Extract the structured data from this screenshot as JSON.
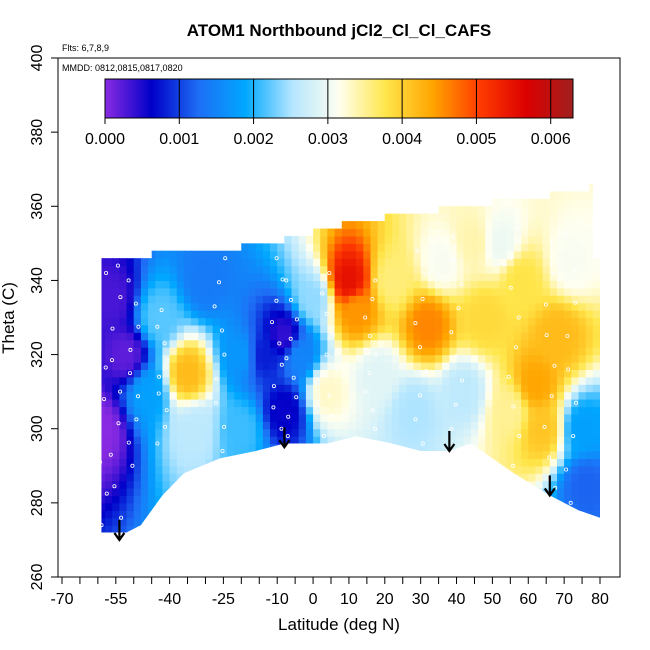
{
  "chart_data": {
    "type": "heatmap",
    "title": "ATOM1 Northbound jCl2_Cl_Cl_CAFS",
    "annotations": {
      "flights": "Flts: 6,7,8,9",
      "dates": "MMDD: 0812,0815,0817,0820"
    },
    "xlabel": "Latitude (deg N)",
    "ylabel": "Theta (C)",
    "xlim": [
      -70,
      82
    ],
    "ylim": [
      260,
      400
    ],
    "x_ticks": [
      -70,
      -55,
      -40,
      -25,
      -10,
      0,
      10,
      20,
      30,
      40,
      50,
      60,
      70,
      80
    ],
    "x_tick_labels": [
      "-70",
      "-55",
      "-40",
      "-25",
      "-10",
      "0",
      "10",
      "20",
      "30",
      "40",
      "50",
      "60",
      "70",
      "80"
    ],
    "y_ticks": [
      260,
      280,
      300,
      320,
      340,
      360,
      380,
      400
    ],
    "y_tick_labels": [
      "260",
      "280",
      "300",
      "320",
      "340",
      "360",
      "380",
      "400"
    ],
    "colorbar": {
      "min": 0.0,
      "max": 0.0063,
      "ticks": [
        0.0,
        0.001,
        0.002,
        0.003,
        0.004,
        0.005,
        0.006
      ],
      "tick_labels": [
        "0.000",
        "0.001",
        "0.002",
        "0.003",
        "0.004",
        "0.005",
        "0.006"
      ],
      "dividers": [
        0.001,
        0.002,
        0.003,
        0.004,
        0.005,
        0.006
      ],
      "colors": [
        "#8a2be2",
        "#0000c8",
        "#1e6ef5",
        "#00a8ff",
        "#b4e6ff",
        "#fffff0",
        "#ffe64b",
        "#ffa500",
        "#ff3c00",
        "#dc0000",
        "#a0201e"
      ]
    },
    "upper_boundary": [
      [
        -59,
        346
      ],
      [
        -45,
        346
      ],
      [
        -45,
        348
      ],
      [
        -20,
        348
      ],
      [
        -20,
        350
      ],
      [
        -8,
        350
      ],
      [
        -8,
        352
      ],
      [
        0,
        352
      ],
      [
        0,
        354
      ],
      [
        8,
        354
      ],
      [
        8,
        356
      ],
      [
        20,
        356
      ],
      [
        20,
        358
      ],
      [
        35,
        358
      ],
      [
        35,
        360
      ],
      [
        50,
        360
      ],
      [
        50,
        362
      ],
      [
        66,
        362
      ],
      [
        66,
        364
      ],
      [
        77,
        364
      ],
      [
        77,
        366
      ],
      [
        78,
        366
      ],
      [
        78,
        346
      ],
      [
        80,
        346
      ],
      [
        80,
        276
      ]
    ],
    "lower_boundary": [
      [
        -65,
        272
      ],
      [
        -52,
        272
      ],
      [
        -48,
        274
      ],
      [
        -42,
        282
      ],
      [
        -36,
        288
      ],
      [
        -26,
        292
      ],
      [
        -16,
        294
      ],
      [
        -8,
        296
      ],
      [
        4,
        296
      ],
      [
        12,
        298
      ],
      [
        22,
        296
      ],
      [
        30,
        294
      ],
      [
        38,
        294
      ],
      [
        44,
        296
      ],
      [
        56,
        288
      ],
      [
        66,
        282
      ],
      [
        74,
        278
      ],
      [
        80,
        276
      ]
    ],
    "sounding_markers": [
      {
        "lat": -54,
        "theta": 270
      },
      {
        "lat": -8,
        "theta": 295
      },
      {
        "lat": 38,
        "theta": 294
      },
      {
        "lat": 66,
        "theta": 282
      }
    ],
    "features": [
      {
        "lat": -59,
        "theta": 300,
        "value": 0.0
      },
      {
        "lat": -52,
        "theta": 320,
        "value": 0.0002
      },
      {
        "lat": -56,
        "theta": 335,
        "value": 0.0003
      },
      {
        "lat": -46,
        "theta": 310,
        "value": 0.0018
      },
      {
        "lat": -43,
        "theta": 330,
        "value": 0.0022
      },
      {
        "lat": -35,
        "theta": 315,
        "value": 0.0042
      },
      {
        "lat": -33,
        "theta": 300,
        "value": 0.0026
      },
      {
        "lat": -30,
        "theta": 340,
        "value": 0.0014
      },
      {
        "lat": -20,
        "theta": 320,
        "value": 0.0017
      },
      {
        "lat": -20,
        "theta": 300,
        "value": 0.0021
      },
      {
        "lat": -14,
        "theta": 320,
        "value": 0.0008
      },
      {
        "lat": -8,
        "theta": 325,
        "value": 0.0004
      },
      {
        "lat": -8,
        "theta": 305,
        "value": 0.0006
      },
      {
        "lat": -4,
        "theta": 320,
        "value": 0.0015
      },
      {
        "lat": 0,
        "theta": 335,
        "value": 0.0024
      },
      {
        "lat": 4,
        "theta": 310,
        "value": 0.0033
      },
      {
        "lat": 10,
        "theta": 340,
        "value": 0.0055
      },
      {
        "lat": 12,
        "theta": 332,
        "value": 0.0045
      },
      {
        "lat": 18,
        "theta": 315,
        "value": 0.0029
      },
      {
        "lat": 22,
        "theta": 340,
        "value": 0.0036
      },
      {
        "lat": 28,
        "theta": 305,
        "value": 0.0025
      },
      {
        "lat": 32,
        "theta": 328,
        "value": 0.0046
      },
      {
        "lat": 36,
        "theta": 345,
        "value": 0.0031
      },
      {
        "lat": 42,
        "theta": 310,
        "value": 0.0026
      },
      {
        "lat": 48,
        "theta": 330,
        "value": 0.0039
      },
      {
        "lat": 52,
        "theta": 350,
        "value": 0.003
      },
      {
        "lat": 55,
        "theta": 305,
        "value": 0.0035
      },
      {
        "lat": 62,
        "theta": 312,
        "value": 0.0044
      },
      {
        "lat": 64,
        "theta": 300,
        "value": 0.0041
      },
      {
        "lat": 68,
        "theta": 325,
        "value": 0.0042
      },
      {
        "lat": 72,
        "theta": 345,
        "value": 0.0031
      },
      {
        "lat": 75,
        "theta": 300,
        "value": 0.0018
      },
      {
        "lat": 76,
        "theta": 285,
        "value": 0.0012
      },
      {
        "lat": 58,
        "theta": 340,
        "value": 0.0038
      },
      {
        "lat": 45,
        "theta": 350,
        "value": 0.0034
      }
    ]
  }
}
